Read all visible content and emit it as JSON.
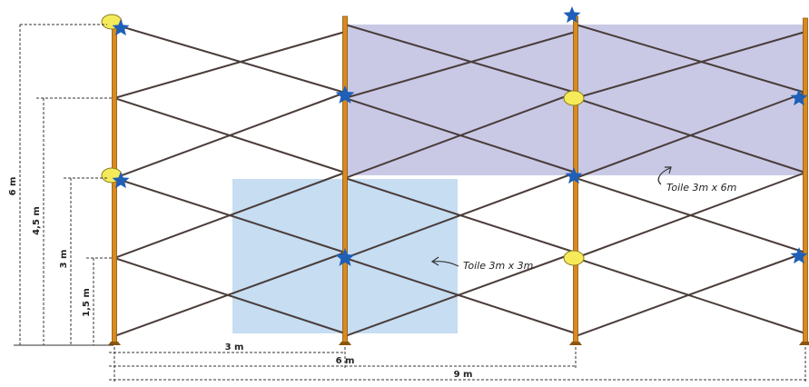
{
  "dimensions": {
    "v_total": "6 m",
    "v_45": "4,5 m",
    "v_3": "3 m",
    "v_15": "1,5 m",
    "h_3": "3 m",
    "h_6": "6 m",
    "h_9": "9 m"
  },
  "annotations": {
    "canvas_large": "Toile 3m x 6m",
    "canvas_small": "Toile 3m x 3m"
  },
  "colors": {
    "post": "#d98a1e",
    "post_edge": "#8a5510",
    "cable": "#4a3d3a",
    "canvas_large": "#c9c9e6",
    "canvas_small": "#c6ddf2",
    "anchor_circle": "#f5ea5a",
    "anchor_star": "#1f5fb8",
    "dimension_line": "#333333"
  },
  "markers": {
    "circle": "anchor-circle",
    "star": "anchor-star"
  }
}
